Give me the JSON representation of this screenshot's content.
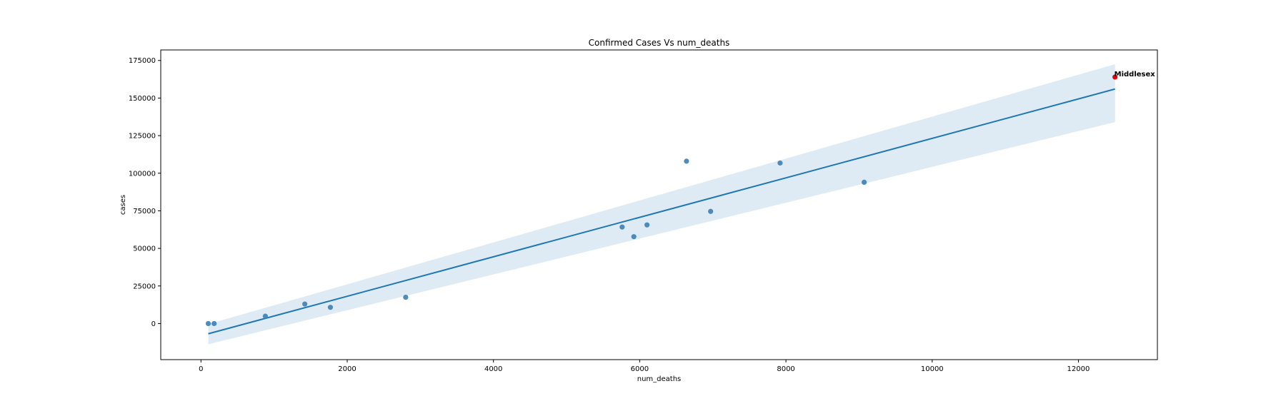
{
  "chart_data": {
    "type": "scatter",
    "title": "Confirmed Cases Vs num_deaths",
    "xlabel": "num_deaths",
    "ylabel": "cases",
    "xlim": [
      -550,
      13080
    ],
    "ylim": [
      -24000,
      182000
    ],
    "xticks": [
      0,
      2000,
      4000,
      6000,
      8000,
      10000,
      12000
    ],
    "yticks": [
      0,
      25000,
      50000,
      75000,
      100000,
      125000,
      150000,
      175000
    ],
    "grid": false,
    "points": [
      {
        "x": 100,
        "y": 0
      },
      {
        "x": 180,
        "y": 0
      },
      {
        "x": 880,
        "y": 4900
      },
      {
        "x": 1420,
        "y": 13000
      },
      {
        "x": 1770,
        "y": 10800
      },
      {
        "x": 2800,
        "y": 17500
      },
      {
        "x": 5760,
        "y": 64200
      },
      {
        "x": 5920,
        "y": 57800
      },
      {
        "x": 6100,
        "y": 65600
      },
      {
        "x": 6640,
        "y": 108000
      },
      {
        "x": 6970,
        "y": 74600
      },
      {
        "x": 7920,
        "y": 106800
      },
      {
        "x": 9070,
        "y": 94000
      }
    ],
    "highlight": {
      "label": "Middlesex",
      "x": 12500,
      "y": 164000,
      "color": "#e8000b"
    },
    "regression": {
      "x0": 100,
      "y0": -6800,
      "x1": 12500,
      "y1": 156000
    },
    "confidence_band": {
      "x": [
        100,
        12500
      ],
      "upper": [
        -400,
        172500
      ],
      "lower": [
        -13800,
        134000
      ]
    },
    "colors": {
      "points": "#3b7fb5",
      "line": "#1f77b4",
      "band": "#1f77b4"
    }
  }
}
